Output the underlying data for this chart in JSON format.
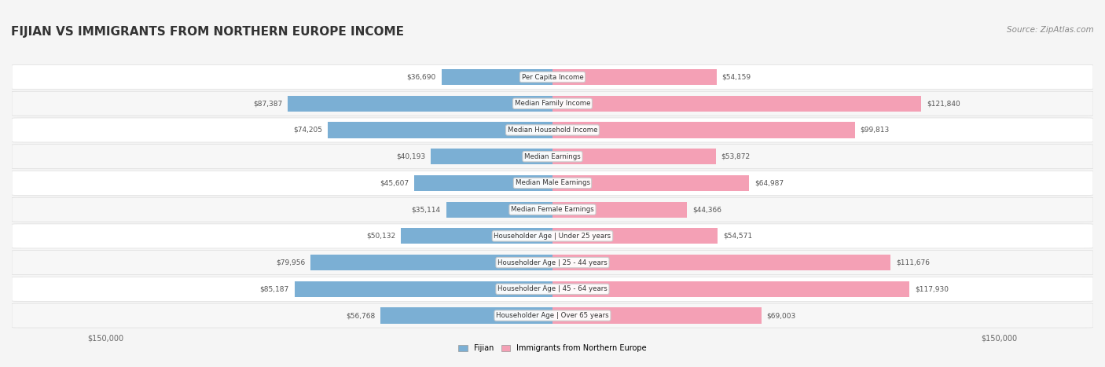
{
  "title": "FIJIAN VS IMMIGRANTS FROM NORTHERN EUROPE INCOME",
  "source": "Source: ZipAtlas.com",
  "categories": [
    "Per Capita Income",
    "Median Family Income",
    "Median Household Income",
    "Median Earnings",
    "Median Male Earnings",
    "Median Female Earnings",
    "Householder Age | Under 25 years",
    "Householder Age | 25 - 44 years",
    "Householder Age | 45 - 64 years",
    "Householder Age | Over 65 years"
  ],
  "fijian_values": [
    36690,
    87387,
    74205,
    40193,
    45607,
    35114,
    50132,
    79956,
    85187,
    56768
  ],
  "immigrant_values": [
    54159,
    121840,
    99813,
    53872,
    64987,
    44366,
    54571,
    111676,
    117930,
    69003
  ],
  "fijian_labels": [
    "$36,690",
    "$87,387",
    "$74,205",
    "$40,193",
    "$45,607",
    "$35,114",
    "$50,132",
    "$79,956",
    "$85,187",
    "$56,768"
  ],
  "immigrant_labels": [
    "$54,159",
    "$121,840",
    "$99,813",
    "$53,872",
    "$64,987",
    "$44,366",
    "$54,571",
    "$111,676",
    "$117,930",
    "$69,003"
  ],
  "fijian_color": "#7bafd4",
  "immigrant_color": "#f4a0b5",
  "fijian_color_dark": "#5b8fbf",
  "immigrant_color_dark": "#e8758f",
  "max_value": 150000,
  "xlabel_left": "$150,000",
  "xlabel_right": "$150,000",
  "legend_fijian": "Fijian",
  "legend_immigrant": "Immigrants from Northern Europe",
  "background_color": "#f5f5f5",
  "row_background": "#ffffff",
  "row_alt_background": "#f0f0f0"
}
